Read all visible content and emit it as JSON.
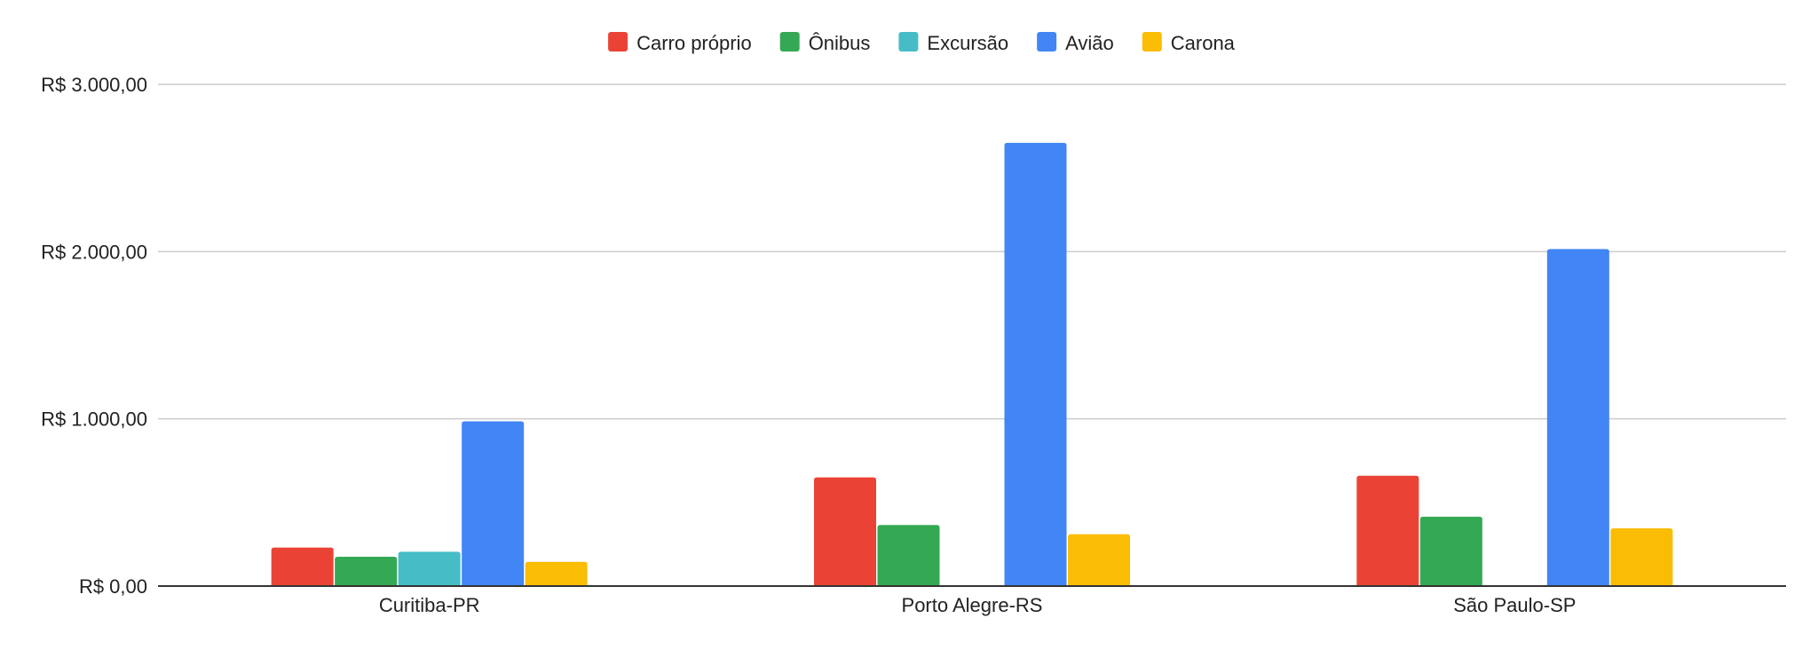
{
  "chart_data": {
    "type": "bar",
    "title": "",
    "xlabel": "",
    "ylabel": "",
    "categories": [
      "Curitiba-PR",
      "Porto Alegre-RS",
      "São Paulo-SP"
    ],
    "series": [
      {
        "name": "Carro próprio",
        "color": "#EA4335",
        "values": [
          230,
          650,
          660
        ]
      },
      {
        "name": "Ônibus",
        "color": "#34A853",
        "values": [
          175,
          365,
          415
        ]
      },
      {
        "name": "Excursão",
        "color": "#46BDC6",
        "values": [
          205,
          null,
          null
        ]
      },
      {
        "name": "Avião",
        "color": "#4285F4",
        "values": [
          985,
          2650,
          2015
        ]
      },
      {
        "name": "Carona",
        "color": "#FBBC04",
        "values": [
          145,
          310,
          345
        ]
      }
    ],
    "ylim": [
      0,
      3000
    ],
    "yticks": [
      0,
      1000,
      2000,
      3000
    ],
    "ytick_labels": [
      "R$ 0,00",
      "R$ 1.000,00",
      "R$ 2.000,00",
      "R$ 3.000,00"
    ],
    "grid": true,
    "legend_position": "top-center"
  }
}
